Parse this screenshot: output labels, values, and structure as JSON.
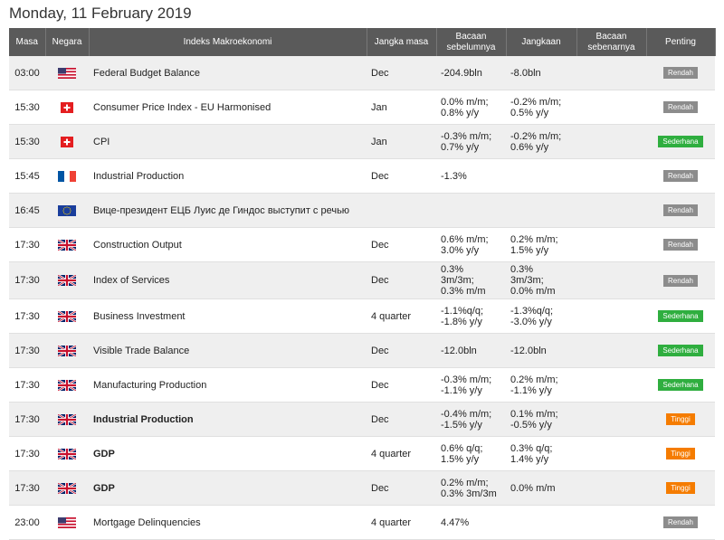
{
  "title": "Monday, 11 February 2019",
  "columns": [
    "Masa",
    "Negara",
    "Indeks Makroekonomi",
    "Jangka masa",
    "Bacaan sebelumnya",
    "Jangkaan",
    "Bacaan sebenarnya",
    "Penting"
  ],
  "rows": [
    {
      "masa": "03:00",
      "indeks": "Federal Budget Balance",
      "jangka_masa": "Dec",
      "bacaan_sebelumnya": "-204.9bln",
      "jangkaan": "-8.0bln",
      "penting": {
        "label": "Rendah",
        "color": "#8c8c8c"
      }
    },
    {
      "masa": "15:30",
      "indeks": "Consumer Price Index - EU Harmonised",
      "jangka_masa": "Jan",
      "bacaan_sebelumnya": "0.0% m/m;\n0.8% y/y",
      "jangkaan": "-0.2% m/m;\n0.5% y/y",
      "penting": {
        "label": "Rendah",
        "color": "#8c8c8c"
      }
    },
    {
      "masa": "15:30",
      "indeks": "CPI",
      "jangka_masa": "Jan",
      "bacaan_sebelumnya": "-0.3% m/m;\n0.7% y/y",
      "jangkaan": "-0.2% m/m;\n0.6% y/y",
      "penting": {
        "label": "Sederhana",
        "color": "#2fae3f"
      }
    },
    {
      "masa": "15:45",
      "indeks": "Industrial Production",
      "jangka_masa": "Dec",
      "bacaan_sebelumnya": "-1.3%",
      "penting": {
        "label": "Rendah",
        "color": "#8c8c8c"
      }
    },
    {
      "masa": "16:45",
      "indeks": "Вице-президент ЕЦБ Луис де Гиндос выступит с речью",
      "penting": {
        "label": "Rendah",
        "color": "#8c8c8c"
      }
    },
    {
      "masa": "17:30",
      "indeks": "Construction Output",
      "jangka_masa": "Dec",
      "bacaan_sebelumnya": "0.6% m/m;\n3.0% y/y",
      "jangkaan": "0.2% m/m;\n1.5% y/y",
      "penting": {
        "label": "Rendah",
        "color": "#8c8c8c"
      }
    },
    {
      "masa": "17:30",
      "indeks": "Index of Services",
      "jangka_masa": "Dec",
      "bacaan_sebelumnya": "0.3%\n3m/3m;\n0.3% m/m",
      "jangkaan": "0.3%\n3m/3m;\n0.0% m/m",
      "penting": {
        "label": "Rendah",
        "color": "#8c8c8c"
      }
    },
    {
      "masa": "17:30",
      "indeks": "Business Investment",
      "jangka_masa": "4 quarter",
      "bacaan_sebelumnya": "-1.1%q/q;\n-1.8% y/y",
      "jangkaan": "-1.3%q/q;\n-3.0% y/y",
      "penting": {
        "label": "Sederhana",
        "color": "#2fae3f"
      }
    },
    {
      "masa": "17:30",
      "indeks": "Visible Trade Balance",
      "jangka_masa": "Dec",
      "bacaan_sebelumnya": "-12.0bln",
      "jangkaan": "-12.0bln",
      "penting": {
        "label": "Sederhana",
        "color": "#2fae3f"
      }
    },
    {
      "masa": "17:30",
      "indeks": "Manufacturing Production",
      "jangka_masa": "Dec",
      "bacaan_sebelumnya": "-0.3% m/m;\n-1.1% y/y",
      "jangkaan": "0.2% m/m;\n-1.1% y/y",
      "penting": {
        "label": "Sederhana",
        "color": "#2fae3f"
      }
    },
    {
      "masa": "17:30",
      "indeks": "Industrial Production",
      "bold": true,
      "jangka_masa": "Dec",
      "bacaan_sebelumnya": "-0.4% m/m;\n-1.5% y/y",
      "jangkaan": "0.1% m/m;\n-0.5% y/y",
      "penting": {
        "label": "Tinggi",
        "color": "#f57c00"
      }
    },
    {
      "masa": "17:30",
      "indeks": "GDP",
      "bold": true,
      "jangka_masa": "4 quarter",
      "bacaan_sebelumnya": "0.6% q/q;\n1.5% y/y",
      "jangkaan": "0.3% q/q;\n1.4% y/y",
      "penting": {
        "label": "Tinggi",
        "color": "#f57c00"
      }
    },
    {
      "masa": "17:30",
      "indeks": "GDP",
      "bold": true,
      "jangka_masa": "Dec",
      "bacaan_sebelumnya": "0.2% m/m;\n0.3% 3m/3m",
      "jangkaan": "0.0% m/m",
      "penting": {
        "label": "Tinggi",
        "color": "#f57c00"
      }
    },
    {
      "masa": "23:00",
      "indeks": "Mortgage Delinquencies",
      "jangka_masa": "4 quarter",
      "bacaan_sebelumnya": "4.47%",
      "penting": {
        "label": "Rendah",
        "color": "#8c8c8c"
      }
    }
  ]
}
